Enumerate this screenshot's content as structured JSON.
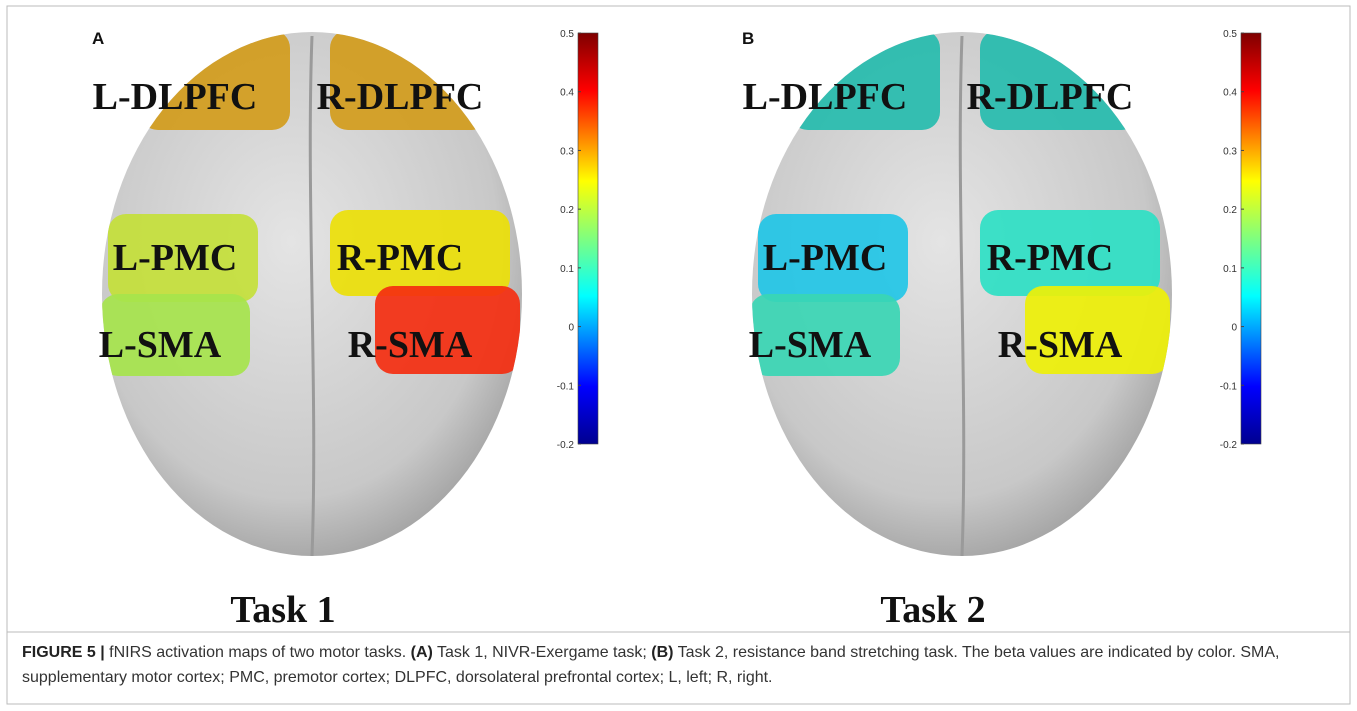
{
  "panels": [
    {
      "letter": "A",
      "task": "Task 1",
      "regions": [
        {
          "label": "L-DLPFC",
          "color": "#d39c1c"
        },
        {
          "label": "R-DLPFC",
          "color": "#d39c1c"
        },
        {
          "label": "L-PMC",
          "color": "#c4e03a"
        },
        {
          "label": "R-PMC",
          "color": "#ecdf08"
        },
        {
          "label": "L-SMA",
          "color": "#a6e44c"
        },
        {
          "label": "R-SMA",
          "color": "#f42e10"
        }
      ],
      "colorbar_ticks": [
        "0.5",
        "0.4",
        "0.3",
        "0.2",
        "0.1",
        "0",
        "-0.1",
        "-0.2"
      ]
    },
    {
      "letter": "B",
      "task": "Task 2",
      "regions": [
        {
          "label": "L-DLPFC",
          "color": "#26bcae"
        },
        {
          "label": "R-DLPFC",
          "color": "#26bcae"
        },
        {
          "label": "L-PMC",
          "color": "#22c6e6"
        },
        {
          "label": "R-PMC",
          "color": "#2ee0c4"
        },
        {
          "label": "L-SMA",
          "color": "#3ad6b4"
        },
        {
          "label": "R-SMA",
          "color": "#eef006"
        }
      ],
      "colorbar_ticks": [
        "0.5",
        "0.4",
        "0.3",
        "0.2",
        "0.1",
        "0",
        "-0.1",
        "-0.2"
      ]
    }
  ],
  "caption": {
    "label": "FIGURE 5 |",
    "parts": [
      {
        "text": " fNIRS activation maps of two motor tasks. ",
        "bold": false
      },
      {
        "text": "(A)",
        "bold": true
      },
      {
        "text": " Task 1, NIVR-Exergame task; ",
        "bold": false
      },
      {
        "text": "(B)",
        "bold": true
      },
      {
        "text": " Task 2, resistance band stretching task. The beta values are indicated by color. SMA, supplementary motor cortex; PMC, premotor cortex; DLPFC, dorsolateral prefrontal cortex; L, left; R, right.",
        "bold": false
      }
    ]
  }
}
